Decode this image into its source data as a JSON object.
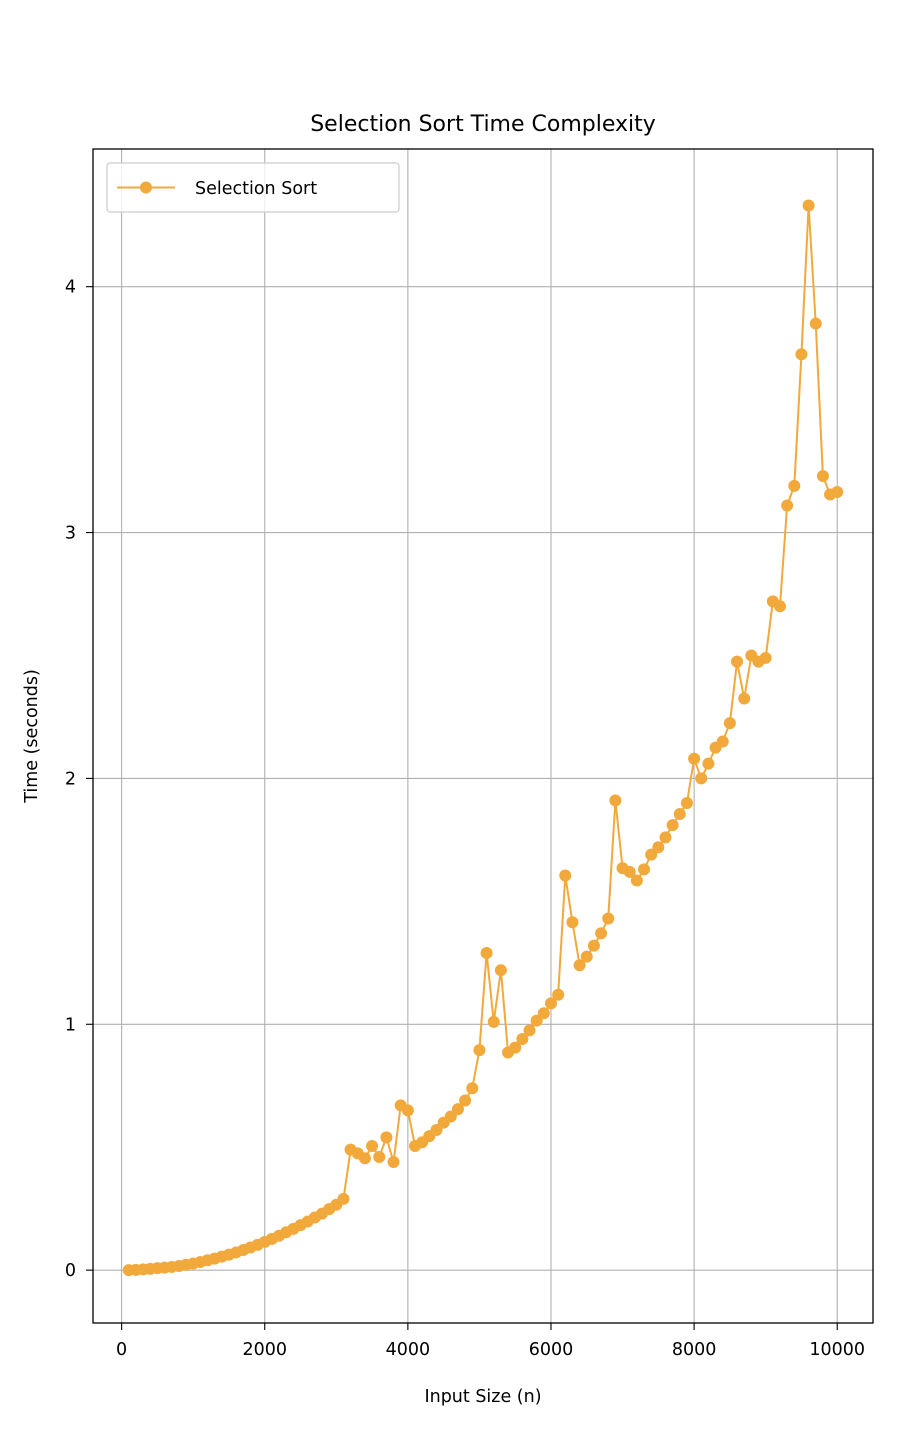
{
  "chart_data": {
    "type": "line",
    "title": "Selection Sort Time Complexity",
    "xlabel": "Input Size (n)",
    "ylabel": "Time (seconds)",
    "xlim": [
      -400,
      10500
    ],
    "ylim": [
      -0.215,
      4.56
    ],
    "xticks": [
      0,
      2000,
      4000,
      6000,
      8000,
      10000
    ],
    "xtick_labels": [
      "0",
      "2000",
      "4000",
      "6000",
      "8000",
      "10000"
    ],
    "yticks": [
      0,
      1,
      2,
      3,
      4
    ],
    "ytick_labels": [
      "0",
      "1",
      "2",
      "3",
      "4"
    ],
    "grid": true,
    "legend_position": "top-left",
    "series": [
      {
        "name": "Selection Sort",
        "color": "#f2a93b",
        "marker": "circle",
        "x": [
          100,
          200,
          300,
          400,
          500,
          600,
          700,
          800,
          900,
          1000,
          1100,
          1200,
          1300,
          1400,
          1500,
          1600,
          1700,
          1800,
          1900,
          2000,
          2100,
          2200,
          2300,
          2400,
          2500,
          2600,
          2700,
          2800,
          2900,
          3000,
          3100,
          3200,
          3300,
          3400,
          3500,
          3600,
          3700,
          3800,
          3900,
          4000,
          4100,
          4200,
          4300,
          4400,
          4500,
          4600,
          4700,
          4800,
          4900,
          5000,
          5100,
          5200,
          5300,
          5400,
          5500,
          5600,
          5700,
          5800,
          5900,
          6000,
          6100,
          6200,
          6300,
          6400,
          6500,
          6600,
          6700,
          6800,
          6900,
          7000,
          7100,
          7200,
          7300,
          7400,
          7500,
          7600,
          7700,
          7800,
          7900,
          8000,
          8100,
          8200,
          8300,
          8400,
          8500,
          8600,
          8700,
          8800,
          8900,
          9000,
          9100,
          9200,
          9300,
          9400,
          9500,
          9600,
          9700,
          9800,
          9900,
          10000
        ],
        "y": [
          0.0,
          0.001,
          0.003,
          0.005,
          0.008,
          0.01,
          0.013,
          0.017,
          0.022,
          0.027,
          0.033,
          0.04,
          0.047,
          0.055,
          0.063,
          0.072,
          0.082,
          0.092,
          0.103,
          0.115,
          0.127,
          0.14,
          0.154,
          0.168,
          0.183,
          0.198,
          0.214,
          0.23,
          0.248,
          0.266,
          0.29,
          0.49,
          0.475,
          0.455,
          0.505,
          0.46,
          0.54,
          0.44,
          0.67,
          0.65,
          0.505,
          0.52,
          0.545,
          0.57,
          0.6,
          0.625,
          0.655,
          0.69,
          0.74,
          0.895,
          1.29,
          1.01,
          1.22,
          0.885,
          0.905,
          0.94,
          0.975,
          1.015,
          1.045,
          1.085,
          1.12,
          1.605,
          1.415,
          1.24,
          1.275,
          1.32,
          1.37,
          1.43,
          1.91,
          1.635,
          1.62,
          1.585,
          1.63,
          1.69,
          1.72,
          1.76,
          1.81,
          1.855,
          1.9,
          2.08,
          2.0,
          2.06,
          2.125,
          2.15,
          2.225,
          2.475,
          2.325,
          2.5,
          2.475,
          2.49,
          2.72,
          2.7,
          3.11,
          3.19,
          3.725,
          4.33,
          3.85,
          3.23,
          3.155,
          3.165
        ]
      }
    ]
  }
}
